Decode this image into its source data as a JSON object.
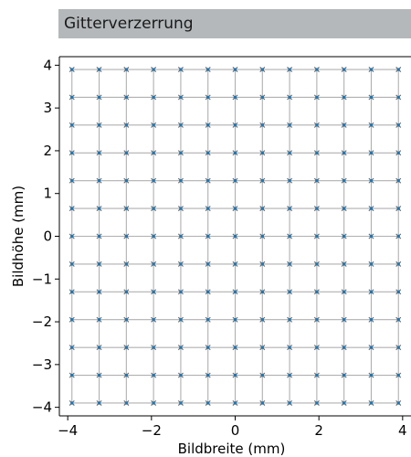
{
  "header": {
    "title": "Gitterverzerrung"
  },
  "chart_data": {
    "type": "scatter",
    "title": "",
    "xlabel": "Bildbreite (mm)",
    "ylabel": "Bildhöhe (mm)",
    "xlim": [
      -4.2,
      4.2
    ],
    "ylim": [
      -4.2,
      4.2
    ],
    "xticks": [
      -4,
      -2,
      0,
      2,
      4
    ],
    "xtick_labels": [
      "−4",
      "−2",
      "0",
      "2",
      "4"
    ],
    "yticks": [
      -4,
      -3,
      -2,
      -1,
      0,
      1,
      2,
      3,
      4
    ],
    "ytick_labels": [
      "−4",
      "−3",
      "−2",
      "−1",
      "0",
      "1",
      "2",
      "3",
      "4"
    ],
    "grid_coords": [
      -3.9,
      -3.25,
      -2.6,
      -1.95,
      -1.3,
      -0.65,
      0,
      0.65,
      1.3,
      1.95,
      2.6,
      3.25,
      3.9
    ],
    "grid_lines": true,
    "colors": {
      "ideal_marker": "#1f77b4",
      "distorted_marker": "#666666",
      "grid": "#b0b0b0"
    }
  }
}
